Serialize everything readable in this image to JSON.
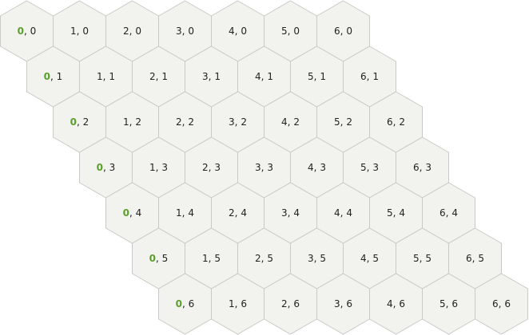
{
  "grid": {
    "columns": 7,
    "rows": 7,
    "separator": ", ",
    "colors": {
      "cell_fill": "#f2f2ef",
      "cell_stroke": "#c9c9c5",
      "label_text": "#222222",
      "first_column_accent": "#5aa02c"
    },
    "cells": [
      [
        {
          "q": "0",
          "r": "0"
        },
        {
          "q": "1",
          "r": "0"
        },
        {
          "q": "2",
          "r": "0"
        },
        {
          "q": "3",
          "r": "0"
        },
        {
          "q": "4",
          "r": "0"
        },
        {
          "q": "5",
          "r": "0"
        },
        {
          "q": "6",
          "r": "0"
        }
      ],
      [
        {
          "q": "0",
          "r": "1"
        },
        {
          "q": "1",
          "r": "1"
        },
        {
          "q": "2",
          "r": "1"
        },
        {
          "q": "3",
          "r": "1"
        },
        {
          "q": "4",
          "r": "1"
        },
        {
          "q": "5",
          "r": "1"
        },
        {
          "q": "6",
          "r": "1"
        }
      ],
      [
        {
          "q": "0",
          "r": "2"
        },
        {
          "q": "1",
          "r": "2"
        },
        {
          "q": "2",
          "r": "2"
        },
        {
          "q": "3",
          "r": "2"
        },
        {
          "q": "4",
          "r": "2"
        },
        {
          "q": "5",
          "r": "2"
        },
        {
          "q": "6",
          "r": "2"
        }
      ],
      [
        {
          "q": "0",
          "r": "3"
        },
        {
          "q": "1",
          "r": "3"
        },
        {
          "q": "2",
          "r": "3"
        },
        {
          "q": "3",
          "r": "3"
        },
        {
          "q": "4",
          "r": "3"
        },
        {
          "q": "5",
          "r": "3"
        },
        {
          "q": "6",
          "r": "3"
        }
      ],
      [
        {
          "q": "0",
          "r": "4"
        },
        {
          "q": "1",
          "r": "4"
        },
        {
          "q": "2",
          "r": "4"
        },
        {
          "q": "3",
          "r": "4"
        },
        {
          "q": "4",
          "r": "4"
        },
        {
          "q": "5",
          "r": "4"
        },
        {
          "q": "6",
          "r": "4"
        }
      ],
      [
        {
          "q": "0",
          "r": "5"
        },
        {
          "q": "1",
          "r": "5"
        },
        {
          "q": "2",
          "r": "5"
        },
        {
          "q": "3",
          "r": "5"
        },
        {
          "q": "4",
          "r": "5"
        },
        {
          "q": "5",
          "r": "5"
        },
        {
          "q": "6",
          "r": "5"
        }
      ],
      [
        {
          "q": "0",
          "r": "6"
        },
        {
          "q": "1",
          "r": "6"
        },
        {
          "q": "2",
          "r": "6"
        },
        {
          "q": "3",
          "r": "6"
        },
        {
          "q": "4",
          "r": "6"
        },
        {
          "q": "5",
          "r": "6"
        },
        {
          "q": "6",
          "r": "6"
        }
      ]
    ]
  }
}
